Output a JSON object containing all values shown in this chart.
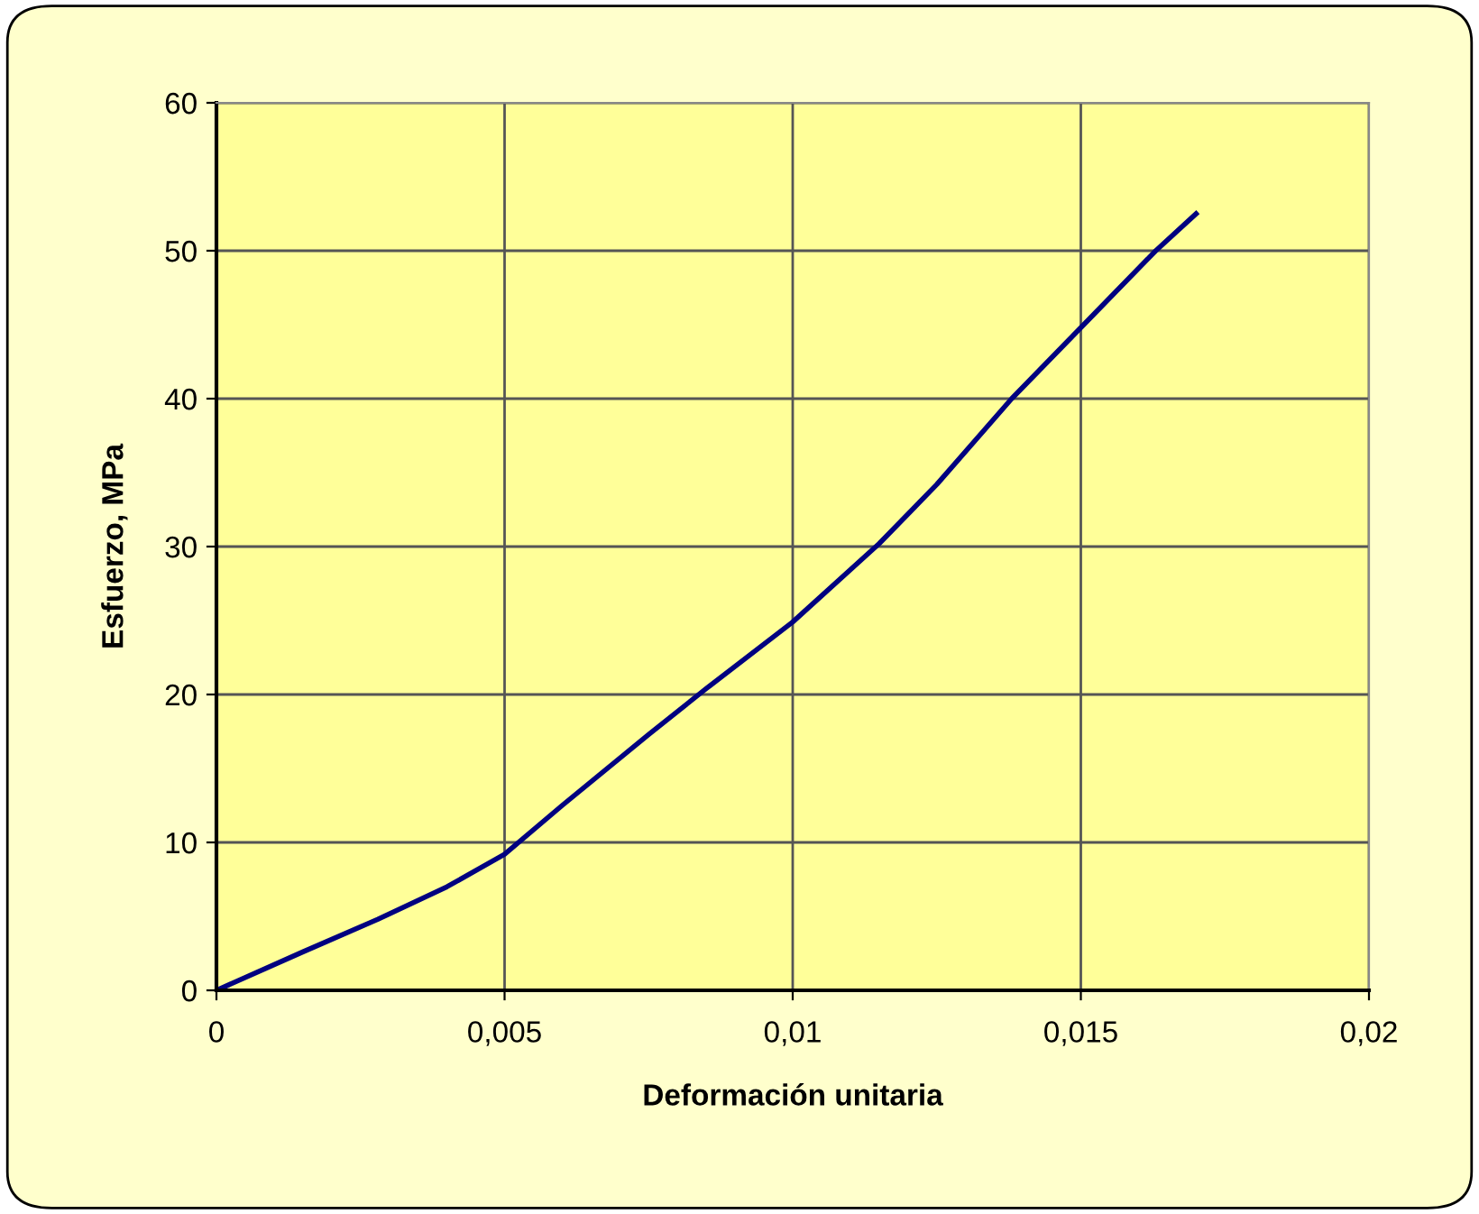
{
  "chart_data": {
    "type": "line",
    "xlabel": "Deformación unitaria",
    "ylabel": "Esfuerzo, MPa",
    "x": [
      0,
      0.0015,
      0.0028,
      0.004,
      0.005,
      0.006,
      0.0075,
      0.0085,
      0.01,
      0.0115,
      0.0125,
      0.0138,
      0.015,
      0.0163,
      0.017
    ],
    "series": [
      {
        "color": "#000080",
        "values": [
          0,
          2.6,
          4.8,
          7,
          9.2,
          12.5,
          17.3,
          20.4,
          24.9,
          30.2,
          34.2,
          40,
          44.8,
          50,
          52.5
        ]
      }
    ],
    "xlim": [
      0,
      0.02
    ],
    "xticks": [
      {
        "value": 0,
        "label": "0"
      },
      {
        "value": 0.005,
        "label": "0,005"
      },
      {
        "value": 0.01,
        "label": "0,01"
      },
      {
        "value": 0.015,
        "label": "0,015"
      },
      {
        "value": 0.02,
        "label": "0,02"
      }
    ],
    "ylim": [
      0,
      60
    ],
    "yticks": [
      0,
      10,
      20,
      30,
      40,
      50,
      60
    ],
    "grid": true,
    "legend": false,
    "marker": "none",
    "line_style": "solid"
  }
}
